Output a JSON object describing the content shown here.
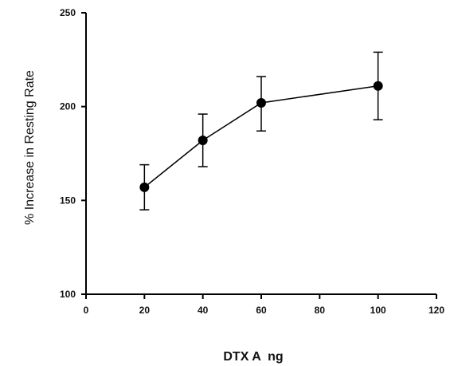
{
  "chart_data": {
    "type": "line",
    "xlabel": "DTX A  ng",
    "ylabel": "% Increase in Resting Rate",
    "xlim": [
      0,
      120
    ],
    "ylim": [
      100,
      250
    ],
    "x_ticks": [
      0,
      20,
      40,
      60,
      80,
      100,
      120
    ],
    "y_ticks": [
      100,
      150,
      200,
      250
    ],
    "x_tick_labels": [
      "0",
      "20",
      "40",
      "60",
      "80",
      "100",
      "120"
    ],
    "y_tick_labels": [
      "100",
      "150",
      "200",
      "250"
    ],
    "grid": false,
    "series": [
      {
        "points": [
          {
            "x": 20,
            "y": 157,
            "err_low": 145,
            "err_high": 169
          },
          {
            "x": 40,
            "y": 182,
            "err_low": 168,
            "err_high": 196
          },
          {
            "x": 60,
            "y": 202,
            "err_low": 187,
            "err_high": 216
          },
          {
            "x": 100,
            "y": 211,
            "err_low": 193,
            "err_high": 229
          }
        ],
        "color": "#000000"
      }
    ]
  }
}
